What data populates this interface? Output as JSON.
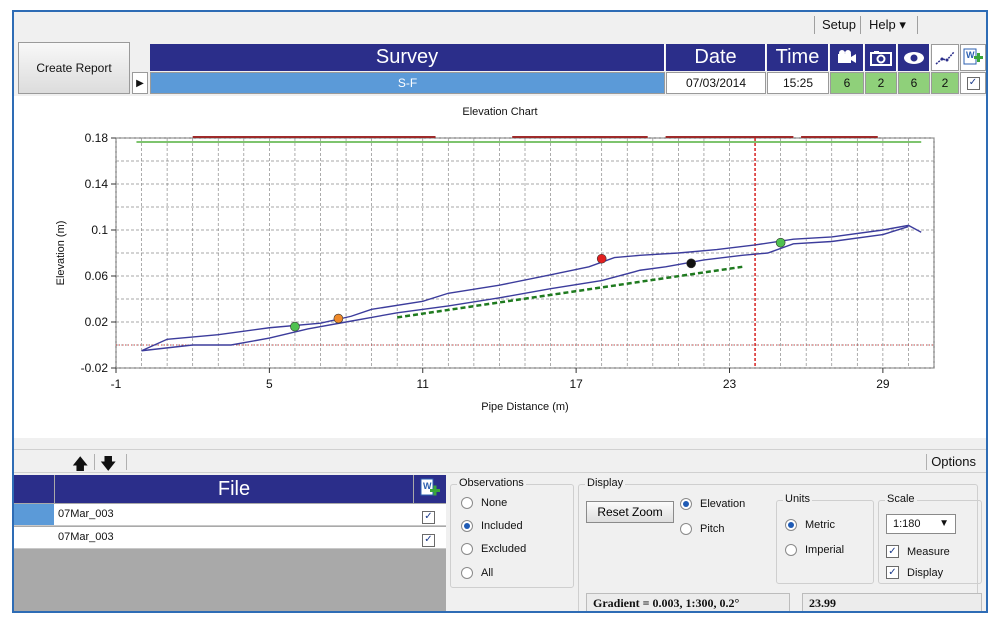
{
  "menu": {
    "setup": "Setup",
    "help": "Help ▾"
  },
  "toolbar": {
    "create_report": "Create Report"
  },
  "survey_grid": {
    "headers": {
      "survey": "Survey",
      "date": "Date",
      "time": "Time"
    },
    "row": {
      "survey": "S-F",
      "date": "07/03/2014",
      "time": "15:25",
      "counts": [
        "6",
        "2",
        "6",
        "2"
      ],
      "checked": "✓"
    },
    "icons": [
      "camera-icon",
      "photo-icon",
      "eye-icon",
      "trend-icon",
      "add-document-icon"
    ]
  },
  "chart_data": {
    "type": "line",
    "title": "Elevation Chart",
    "xlabel": "Pipe Distance (m)",
    "ylabel": "Elevation (m)",
    "xlim": [
      -1,
      31
    ],
    "ylim": [
      -0.02,
      0.18
    ],
    "xticks": [
      -1,
      5,
      11,
      17,
      23,
      29
    ],
    "xtick_labels": [
      "-1",
      "5",
      "11",
      "17",
      "23",
      "29"
    ],
    "yticks": [
      -0.02,
      0.02,
      0.06,
      0.1,
      0.14,
      0.18
    ],
    "ytick_labels": [
      "-0.02",
      "0.02",
      "0.06",
      "0.1",
      "0.14",
      "0.18"
    ],
    "grid": true,
    "series": [
      {
        "color": "#3c3c9c",
        "points": [
          [
            0,
            -0.005
          ],
          [
            1,
            0.005
          ],
          [
            3,
            0.009
          ],
          [
            5,
            0.015
          ],
          [
            7,
            0.019
          ],
          [
            8.2,
            0.025
          ],
          [
            9,
            0.031
          ],
          [
            11,
            0.038
          ],
          [
            12,
            0.045
          ],
          [
            14,
            0.052
          ],
          [
            16,
            0.061
          ],
          [
            17.5,
            0.068
          ],
          [
            18.5,
            0.076
          ],
          [
            19.5,
            0.078
          ],
          [
            21,
            0.08
          ],
          [
            22.5,
            0.083
          ],
          [
            24,
            0.087
          ],
          [
            25.5,
            0.092
          ],
          [
            27,
            0.094
          ],
          [
            29,
            0.1
          ],
          [
            30,
            0.104
          ],
          [
            30.5,
            0.098
          ]
        ]
      },
      {
        "color": "#3c3c9c",
        "points": [
          [
            0,
            -0.005
          ],
          [
            2,
            0.0
          ],
          [
            3.5,
            0.0
          ],
          [
            5,
            0.006
          ],
          [
            6.5,
            0.014
          ],
          [
            8,
            0.02
          ],
          [
            10,
            0.028
          ],
          [
            12,
            0.034
          ],
          [
            14,
            0.041
          ],
          [
            16,
            0.049
          ],
          [
            18,
            0.056
          ],
          [
            19.5,
            0.065
          ],
          [
            20.5,
            0.068
          ],
          [
            22,
            0.074
          ],
          [
            23.5,
            0.078
          ],
          [
            24.5,
            0.08
          ],
          [
            25.5,
            0.088
          ],
          [
            27,
            0.09
          ],
          [
            29,
            0.096
          ],
          [
            30,
            0.103
          ]
        ]
      }
    ],
    "trend_line": {
      "color": "#1f7a1f",
      "points": [
        [
          10,
          0.024
        ],
        [
          23.5,
          0.068
        ]
      ]
    },
    "markers": [
      {
        "x": 6.0,
        "y": 0.016,
        "color": "#4fc24f"
      },
      {
        "x": 7.7,
        "y": 0.023,
        "color": "#f08a2a"
      },
      {
        "x": 18.0,
        "y": 0.075,
        "color": "#e22020"
      },
      {
        "x": 21.5,
        "y": 0.071,
        "color": "#111111"
      },
      {
        "x": 25.0,
        "y": 0.089,
        "color": "#4fc24f"
      }
    ],
    "marker_line_x": 24.0,
    "reference_y": 0.0,
    "top_bars": [
      {
        "from": -0.2,
        "to": 30.5,
        "color": "#7ec46e"
      },
      {
        "from": 2,
        "to": 11.5,
        "color": "#9e2a2a"
      },
      {
        "from": 14.5,
        "to": 19.8,
        "color": "#9e2a2a"
      },
      {
        "from": 20.5,
        "to": 25.5,
        "color": "#9e2a2a"
      },
      {
        "from": 25.8,
        "to": 28.8,
        "color": "#9e2a2a"
      }
    ]
  },
  "lower_toolbar": {
    "up_arrow": "🡅",
    "down_arrow": "🡇",
    "options": "Options"
  },
  "file_table": {
    "header": "File",
    "rows": [
      {
        "name": "07Mar_003",
        "checked": "✓"
      },
      {
        "name": "07Mar_003",
        "checked": "✓"
      }
    ]
  },
  "observations": {
    "title": "Observations",
    "options": [
      "None",
      "Included",
      "Excluded",
      "All"
    ],
    "selected": "Included"
  },
  "display": {
    "title": "Display",
    "reset_zoom": "Reset Zoom",
    "options": [
      "Elevation",
      "Pitch"
    ],
    "selected": "Elevation"
  },
  "units": {
    "title": "Units",
    "options": [
      "Metric",
      "Imperial"
    ],
    "selected": "Metric"
  },
  "scale": {
    "title": "Scale",
    "value": "1:180",
    "checks": [
      "Measure",
      "Display"
    ]
  },
  "status": {
    "gradient": "Gradient = 0.003, 1:300, 0.2°",
    "value": "23.99"
  }
}
